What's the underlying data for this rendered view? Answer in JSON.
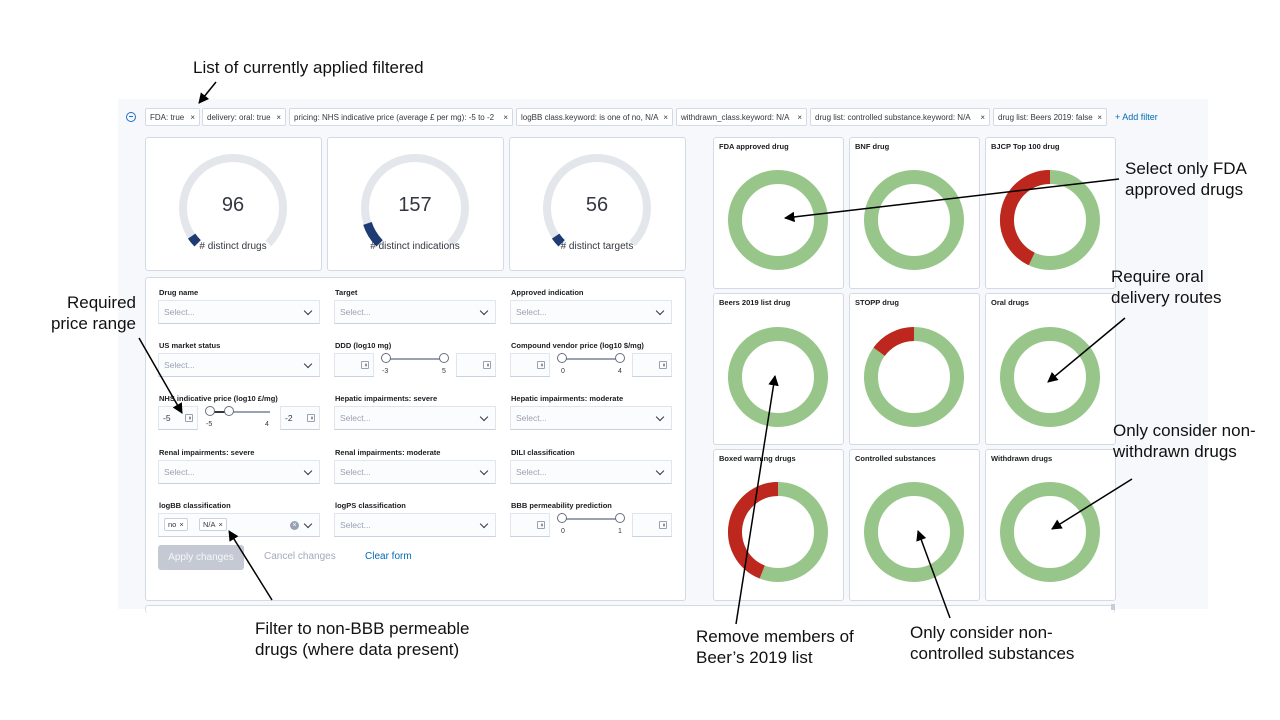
{
  "filter_bar": {
    "pills": [
      {
        "label": "FDA: true"
      },
      {
        "label": "delivery: oral: true"
      },
      {
        "label": "pricing: NHS indicative price (average £ per mg): -5 to -2"
      },
      {
        "label": "logBB class.keyword: is one of no, N/A"
      },
      {
        "label": "withdrawn_class.keyword: N/A"
      },
      {
        "label": "drug list: controlled substance.keyword: N/A"
      },
      {
        "label": "drug list: Beers 2019: false"
      }
    ],
    "close_glyph": "×",
    "add_filter": "+ Add filter"
  },
  "metrics": [
    {
      "value": "96",
      "label": "# distinct drugs",
      "fill": 0.04
    },
    {
      "value": "157",
      "label": "# distinct indications",
      "fill": 0.1
    },
    {
      "value": "56",
      "label": "# distinct targets",
      "fill": 0.04
    }
  ],
  "form": {
    "fields": {
      "drug_name": {
        "label": "Drug name",
        "placeholder": "Select..."
      },
      "target": {
        "label": "Target",
        "placeholder": "Select..."
      },
      "approved_indication": {
        "label": "Approved indication",
        "placeholder": "Select..."
      },
      "us_market_status": {
        "label": "US market status",
        "placeholder": "Select..."
      },
      "ddd": {
        "label": "DDD (log10 mg)",
        "min_tick": "-3",
        "max_tick": "5"
      },
      "compound_vendor_price": {
        "label": "Compound vendor price (log10 $/mg)",
        "min_tick": "0",
        "max_tick": "4"
      },
      "nhs_price": {
        "label": "NHS indicative price (log10 £/mg)",
        "min_value": "-5",
        "max_value": "-2",
        "min_tick": "-5",
        "max_tick": "4"
      },
      "hepatic_severe": {
        "label": "Hepatic impairments: severe",
        "placeholder": "Select..."
      },
      "hepatic_moderate": {
        "label": "Hepatic impairments: moderate",
        "placeholder": "Select..."
      },
      "renal_severe": {
        "label": "Renal impairments: severe",
        "placeholder": "Select..."
      },
      "renal_moderate": {
        "label": "Renal impairments: moderate",
        "placeholder": "Select..."
      },
      "dili": {
        "label": "DILI classification",
        "placeholder": "Select..."
      },
      "logbb": {
        "label": "logBB classification",
        "chips": [
          "no",
          "N/A"
        ]
      },
      "logps": {
        "label": "logPS classification",
        "placeholder": "Select..."
      },
      "bbb": {
        "label": "BBB permeability prediction",
        "min_tick": "0",
        "max_tick": "1"
      }
    },
    "buttons": {
      "apply": "Apply changes",
      "cancel": "Cancel changes",
      "clear": "Clear form"
    }
  },
  "donuts": [
    {
      "title": "FDA approved drug",
      "red_fraction": 0
    },
    {
      "title": "BNF drug",
      "red_fraction": 0
    },
    {
      "title": "BJCP Top 100 drug",
      "red_fraction": 0.43
    },
    {
      "title": "Beers 2019 list drug",
      "red_fraction": 0
    },
    {
      "title": "STOPP drug",
      "red_fraction": 0.15
    },
    {
      "title": "Oral drugs",
      "red_fraction": 0
    },
    {
      "title": "Boxed warning drugs",
      "red_fraction": 0.44
    },
    {
      "title": "Controlled substances",
      "red_fraction": 0
    },
    {
      "title": "Withdrawn drugs",
      "red_fraction": 0
    }
  ],
  "colors": {
    "donut_green": "#98c68a",
    "donut_red": "#bd271e",
    "gauge_fill": "#1f3b73",
    "gauge_track": "#e3e6ea"
  },
  "annotations": {
    "filters_list": "List of currently applied filtered",
    "fda": [
      "Select only FDA",
      "approved drugs"
    ],
    "oral": [
      "Require oral",
      "delivery routes"
    ],
    "withdrawn": [
      "Only consider non-",
      "withdrawn drugs"
    ],
    "price": [
      "Required",
      "price range"
    ],
    "bbb": [
      "Filter to non-BBB permeable",
      "drugs (where data present)"
    ],
    "beers": [
      "Remove members of",
      "Beer’s 2019 list"
    ],
    "controlled": [
      "Only consider non-",
      "controlled substances"
    ]
  }
}
